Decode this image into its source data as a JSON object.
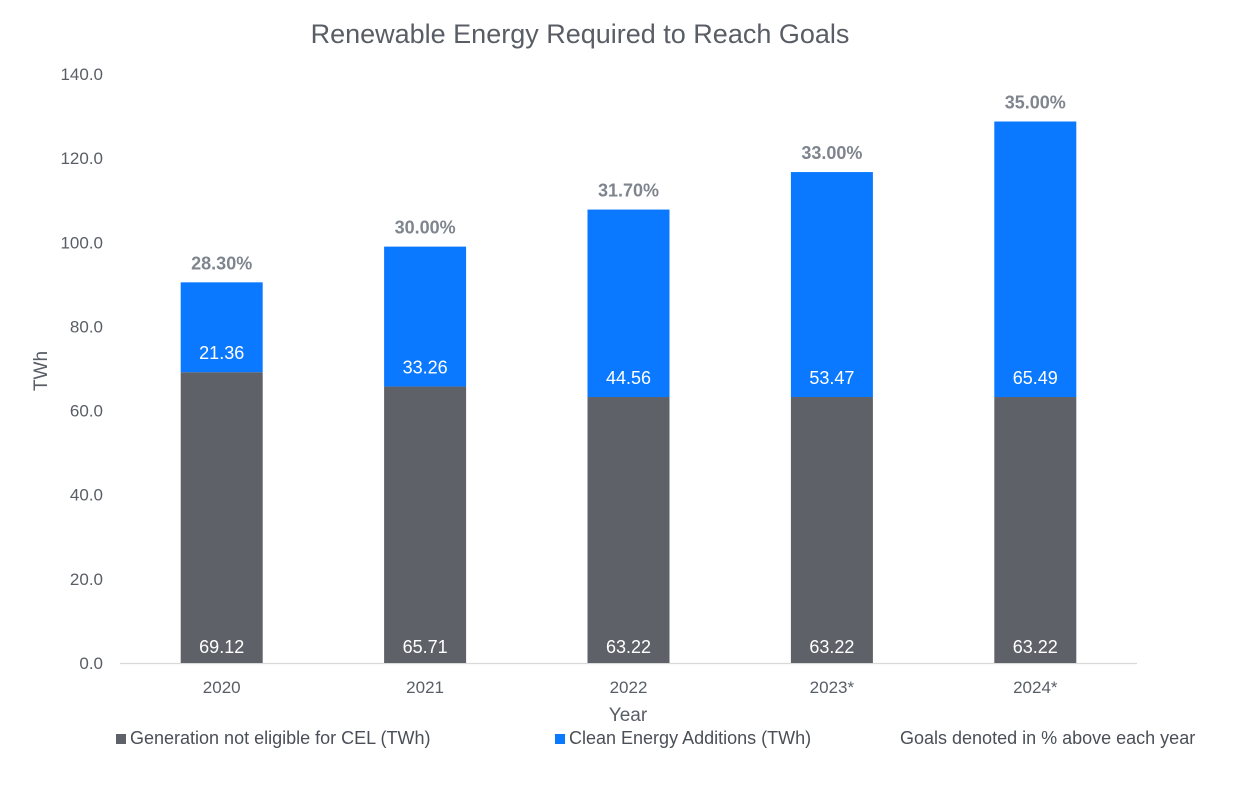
{
  "chart_data": {
    "type": "bar",
    "stacked": true,
    "title": "Renewable Energy Required to Reach Goals",
    "xlabel": "Year",
    "ylabel": "TWh",
    "ylim": [
      0,
      140
    ],
    "yticks": [
      "0.0",
      "20.0",
      "40.0",
      "60.0",
      "80.0",
      "100.0",
      "120.0",
      "140.0"
    ],
    "categories": [
      "2020",
      "2021",
      "2022",
      "2023*",
      "2024*"
    ],
    "series": [
      {
        "name": "Generation not eligible for CEL (TWh)",
        "values": [
          69.12,
          65.71,
          63.22,
          63.22,
          63.22
        ],
        "labels": [
          "69.12",
          "65.71",
          "63.22",
          "63.22",
          "63.22"
        ],
        "color": "#5f6168"
      },
      {
        "name": "Clean Energy Additions (TWh)",
        "values": [
          21.36,
          33.26,
          44.56,
          53.47,
          65.49
        ],
        "labels": [
          "21.36",
          "33.26",
          "44.56",
          "53.47",
          "65.49"
        ],
        "color": "#0b79ff"
      }
    ],
    "goal_labels": [
      "28.30%",
      "30.00%",
      "31.70%",
      "33.00%",
      "35.00%"
    ],
    "legend_note": "Goals denoted in % above each year",
    "legend_position": "bottom",
    "grid": false
  },
  "colors": {
    "text": "#595e66",
    "goal_label": "#7f858e",
    "axis": "#d9d9d9"
  }
}
